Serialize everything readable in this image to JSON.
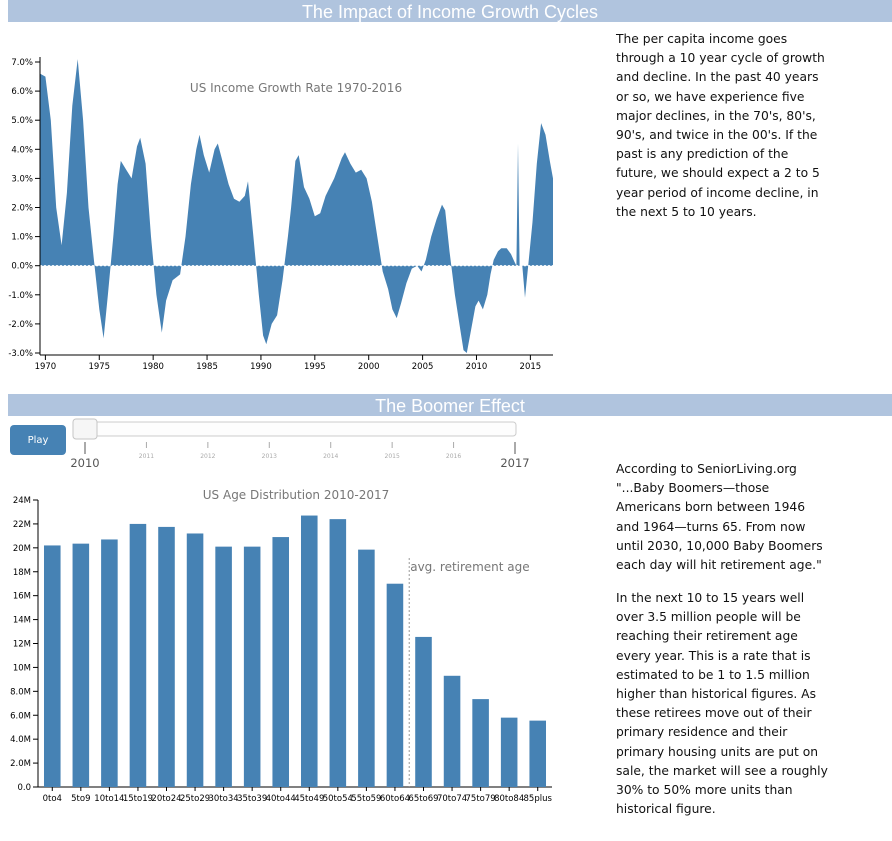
{
  "sections": {
    "income_title": "The Impact of Income Growth Cycles",
    "boomer_title": "The Boomer Effect"
  },
  "income_text": "The per capita income goes through a 10 year cycle of growth and decline. In the past 40 years or so, we have experience five major declines, in the 70's, 80's, 90's, and twice in the 00's. If the past is any prediction of the future, we should expect a 2 to 5 year period of income decline, in the next 5 to 10 years.",
  "boomer_text": {
    "p1": "According to SeniorLiving.org \"...Baby Boomers—those Americans born between 1946 and 1964—turns 65. From now until 2030, 10,000 Baby Boomers each day will hit retirement age.\"",
    "p2": "In the next 10 to 15 years well over 3.5 million people will be reaching their retirement age every year. This is a rate that is estimated to be 1 to 1.5 million higher than historical figures. As these retirees move out of their primary residence and their primary housing units are put on sale, the market will see a roughly 30% to 50% more units than historical figure."
  },
  "controls": {
    "play_label": "Play",
    "slider": {
      "years": [
        "2010",
        "2011",
        "2012",
        "2013",
        "2014",
        "2015",
        "2016",
        "2017"
      ],
      "start_label": "2010",
      "end_label": "2017",
      "value": "2010"
    }
  },
  "colors": {
    "accent": "#4682b4",
    "banner": "#b0c4de"
  },
  "chart_data": [
    {
      "type": "area",
      "title": "US Income Growth Rate 1970-2016",
      "x_label": "",
      "y_label": "",
      "ylim": [
        -3.0,
        7.0
      ],
      "xlim": [
        1969.5,
        2017.1
      ],
      "y_ticks": [
        "7.0%",
        "6.0%",
        "5.0%",
        "4.0%",
        "3.0%",
        "2.0%",
        "1.0%",
        "0.0%",
        "-1.0%",
        "-2.0%",
        "-3.0%"
      ],
      "x_ticks": [
        "1970",
        "1975",
        "1980",
        "1985",
        "1990",
        "1995",
        "2000",
        "2005",
        "2010",
        "2015"
      ],
      "zero_line": "dotted",
      "points": [
        [
          1969.5,
          6.6
        ],
        [
          1970.0,
          6.5
        ],
        [
          1970.5,
          5.0
        ],
        [
          1971.0,
          2.0
        ],
        [
          1971.5,
          0.7
        ],
        [
          1972.0,
          2.5
        ],
        [
          1972.5,
          5.5
        ],
        [
          1973.0,
          7.1
        ],
        [
          1973.5,
          5.0
        ],
        [
          1974.0,
          2.0
        ],
        [
          1974.5,
          0.2
        ],
        [
          1975.0,
          -1.5
        ],
        [
          1975.4,
          -2.5
        ],
        [
          1975.8,
          -1.0
        ],
        [
          1976.3,
          1.0
        ],
        [
          1976.7,
          2.8
        ],
        [
          1977.0,
          3.6
        ],
        [
          1977.5,
          3.3
        ],
        [
          1978.0,
          3.0
        ],
        [
          1978.5,
          4.1
        ],
        [
          1978.8,
          4.4
        ],
        [
          1979.3,
          3.5
        ],
        [
          1979.8,
          1.0
        ],
        [
          1980.3,
          -1.0
        ],
        [
          1980.8,
          -2.3
        ],
        [
          1981.2,
          -1.2
        ],
        [
          1981.8,
          -0.5
        ],
        [
          1982.5,
          -0.3
        ],
        [
          1983.0,
          1.0
        ],
        [
          1983.5,
          2.8
        ],
        [
          1984.0,
          4.0
        ],
        [
          1984.3,
          4.5
        ],
        [
          1984.7,
          3.8
        ],
        [
          1985.2,
          3.2
        ],
        [
          1985.7,
          4.0
        ],
        [
          1986.0,
          4.2
        ],
        [
          1986.5,
          3.5
        ],
        [
          1987.0,
          2.8
        ],
        [
          1987.5,
          2.3
        ],
        [
          1988.0,
          2.2
        ],
        [
          1988.5,
          2.4
        ],
        [
          1988.8,
          2.9
        ],
        [
          1989.3,
          1.0
        ],
        [
          1989.8,
          -1.0
        ],
        [
          1990.2,
          -2.4
        ],
        [
          1990.5,
          -2.7
        ],
        [
          1991.0,
          -2.0
        ],
        [
          1991.5,
          -1.7
        ],
        [
          1992.0,
          -0.5
        ],
        [
          1992.5,
          1.0
        ],
        [
          1992.8,
          2.0
        ],
        [
          1993.2,
          3.6
        ],
        [
          1993.5,
          3.8
        ],
        [
          1994.0,
          2.7
        ],
        [
          1994.5,
          2.3
        ],
        [
          1995.0,
          1.7
        ],
        [
          1995.5,
          1.8
        ],
        [
          1996.0,
          2.4
        ],
        [
          1996.8,
          3.0
        ],
        [
          1997.5,
          3.7
        ],
        [
          1997.8,
          3.9
        ],
        [
          1998.3,
          3.5
        ],
        [
          1998.8,
          3.2
        ],
        [
          1999.3,
          3.3
        ],
        [
          1999.8,
          3.0
        ],
        [
          2000.3,
          2.2
        ],
        [
          2000.8,
          1.0
        ],
        [
          2001.3,
          -0.2
        ],
        [
          2001.8,
          -0.8
        ],
        [
          2002.2,
          -1.5
        ],
        [
          2002.6,
          -1.8
        ],
        [
          2003.0,
          -1.3
        ],
        [
          2003.5,
          -0.6
        ],
        [
          2004.0,
          -0.1
        ],
        [
          2004.5,
          0.0
        ],
        [
          2004.9,
          -0.2
        ],
        [
          2005.3,
          0.2
        ],
        [
          2005.8,
          1.0
        ],
        [
          2006.3,
          1.6
        ],
        [
          2006.8,
          2.1
        ],
        [
          2007.1,
          1.9
        ],
        [
          2007.5,
          0.5
        ],
        [
          2008.0,
          -1.0
        ],
        [
          2008.5,
          -2.2
        ],
        [
          2008.8,
          -2.9
        ],
        [
          2009.1,
          -3.0
        ],
        [
          2009.5,
          -2.2
        ],
        [
          2009.9,
          -1.4
        ],
        [
          2010.2,
          -1.2
        ],
        [
          2010.6,
          -1.5
        ],
        [
          2011.0,
          -1.0
        ],
        [
          2011.3,
          -0.3
        ],
        [
          2011.6,
          0.2
        ],
        [
          2012.0,
          0.5
        ],
        [
          2012.3,
          0.6
        ],
        [
          2012.8,
          0.6
        ],
        [
          2013.2,
          0.4
        ],
        [
          2013.5,
          0.15
        ],
        [
          2013.7,
          0.0
        ],
        [
          2013.85,
          4.2
        ],
        [
          2014.0,
          0.0
        ],
        [
          2014.25,
          0.0
        ],
        [
          2014.5,
          -1.1
        ],
        [
          2014.8,
          0.0
        ],
        [
          2015.2,
          1.5
        ],
        [
          2015.6,
          3.5
        ],
        [
          2016.0,
          4.9
        ],
        [
          2016.4,
          4.5
        ],
        [
          2016.8,
          3.6
        ],
        [
          2017.1,
          3.0
        ]
      ]
    },
    {
      "type": "bar",
      "title": "US Age Distribution 2010-2017",
      "x_label": "",
      "y_label": "",
      "ylim": [
        0,
        24000000
      ],
      "y_ticks": [
        "0.0",
        "2.0M",
        "4.0M",
        "6.0M",
        "8.0M",
        "10M",
        "12M",
        "14M",
        "16M",
        "18M",
        "20M",
        "22M",
        "24M"
      ],
      "categories": [
        "0to4",
        "5to9",
        "10to14",
        "15to19",
        "20to24",
        "25to29",
        "30to34",
        "35to39",
        "40to44",
        "45to49",
        "50to54",
        "55to59",
        "60to64",
        "65to69",
        "70to74",
        "75to79",
        "80to84",
        "85plus"
      ],
      "values": [
        20200000,
        20350000,
        20700000,
        22000000,
        21750000,
        21200000,
        20100000,
        20100000,
        20900000,
        22700000,
        22400000,
        19850000,
        17000000,
        12550000,
        9300000,
        7350000,
        5800000,
        5550000
      ],
      "annotation": {
        "label": "avg. retirement age",
        "between": [
          "60to64",
          "65to69"
        ]
      }
    }
  ]
}
